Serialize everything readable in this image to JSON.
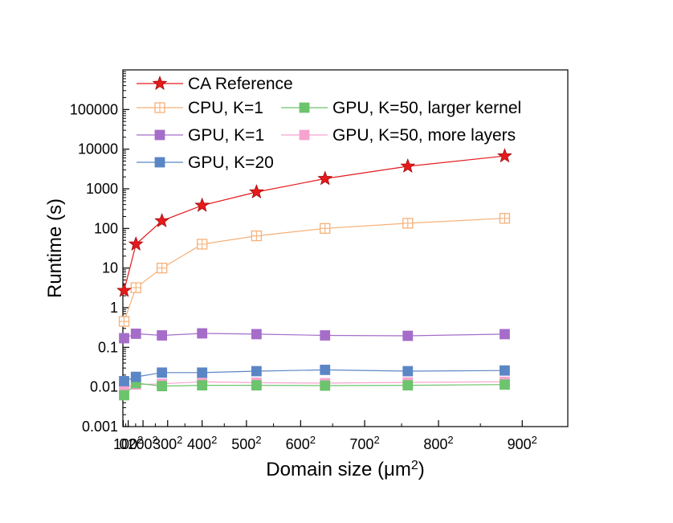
{
  "chart_data": {
    "type": "line",
    "xlabel": "Domain size (μm²)",
    "ylabel": "Runtime (s)",
    "xscale": "quadratic",
    "yscale": "log",
    "xlim": [
      -30,
      950
    ],
    "ylim": [
      0.001,
      1000000
    ],
    "x_ticks": [
      {
        "value": 0,
        "label": "0",
        "sup": ""
      },
      {
        "value": 100,
        "label": "100",
        "sup": "2"
      },
      {
        "value": 200,
        "label": "200",
        "sup": "2"
      },
      {
        "value": 300,
        "label": "300",
        "sup": "2"
      },
      {
        "value": 400,
        "label": "400",
        "sup": "2"
      },
      {
        "value": 500,
        "label": "500",
        "sup": "2"
      },
      {
        "value": 600,
        "label": "600",
        "sup": "2"
      },
      {
        "value": 700,
        "label": "700",
        "sup": "2"
      },
      {
        "value": 800,
        "label": "800",
        "sup": "2"
      },
      {
        "value": 900,
        "label": "900",
        "sup": "2"
      }
    ],
    "y_ticks": [
      {
        "value": 0.001,
        "label": "0.001"
      },
      {
        "value": 0.01,
        "label": "0.01"
      },
      {
        "value": 0.1,
        "label": "0.1"
      },
      {
        "value": 1,
        "label": "1"
      },
      {
        "value": 10,
        "label": "10"
      },
      {
        "value": 100,
        "label": "100"
      },
      {
        "value": 1000,
        "label": "1000"
      },
      {
        "value": 10000,
        "label": "10000"
      },
      {
        "value": 100000,
        "label": "100000"
      }
    ],
    "x": [
      40,
      160,
      280,
      400,
      520,
      640,
      760,
      880
    ],
    "series": [
      {
        "name": "CA Reference",
        "color": "#e41a1c",
        "marker": "star",
        "values": [
          2.7,
          40,
          155,
          380,
          830,
          1800,
          3700,
          6700
        ]
      },
      {
        "name": "CPU, K=1",
        "color": "#f5b078",
        "marker": "square-cross",
        "values": [
          0.45,
          3.2,
          10,
          40,
          65,
          100,
          135,
          180
        ]
      },
      {
        "name": "GPU, K=1",
        "color": "#a56dc9",
        "marker": "square",
        "values": [
          0.17,
          0.22,
          0.2,
          0.225,
          0.215,
          0.2,
          0.195,
          0.215
        ]
      },
      {
        "name": "GPU, K=20",
        "color": "#5b86c5",
        "marker": "square",
        "values": [
          0.014,
          0.018,
          0.023,
          0.023,
          0.025,
          0.027,
          0.025,
          0.026
        ]
      },
      {
        "name": "GPU, K=50, larger kernel",
        "color": "#6cc46c",
        "marker": "square",
        "values": [
          0.0062,
          0.0125,
          0.0105,
          0.011,
          0.011,
          0.0108,
          0.011,
          0.0115
        ]
      },
      {
        "name": "GPU, K=50, more layers",
        "color": "#f7a3cf",
        "marker": "square",
        "values": [
          0.0095,
          0.0115,
          0.012,
          0.0135,
          0.0128,
          0.0125,
          0.013,
          0.0135
        ]
      }
    ]
  }
}
